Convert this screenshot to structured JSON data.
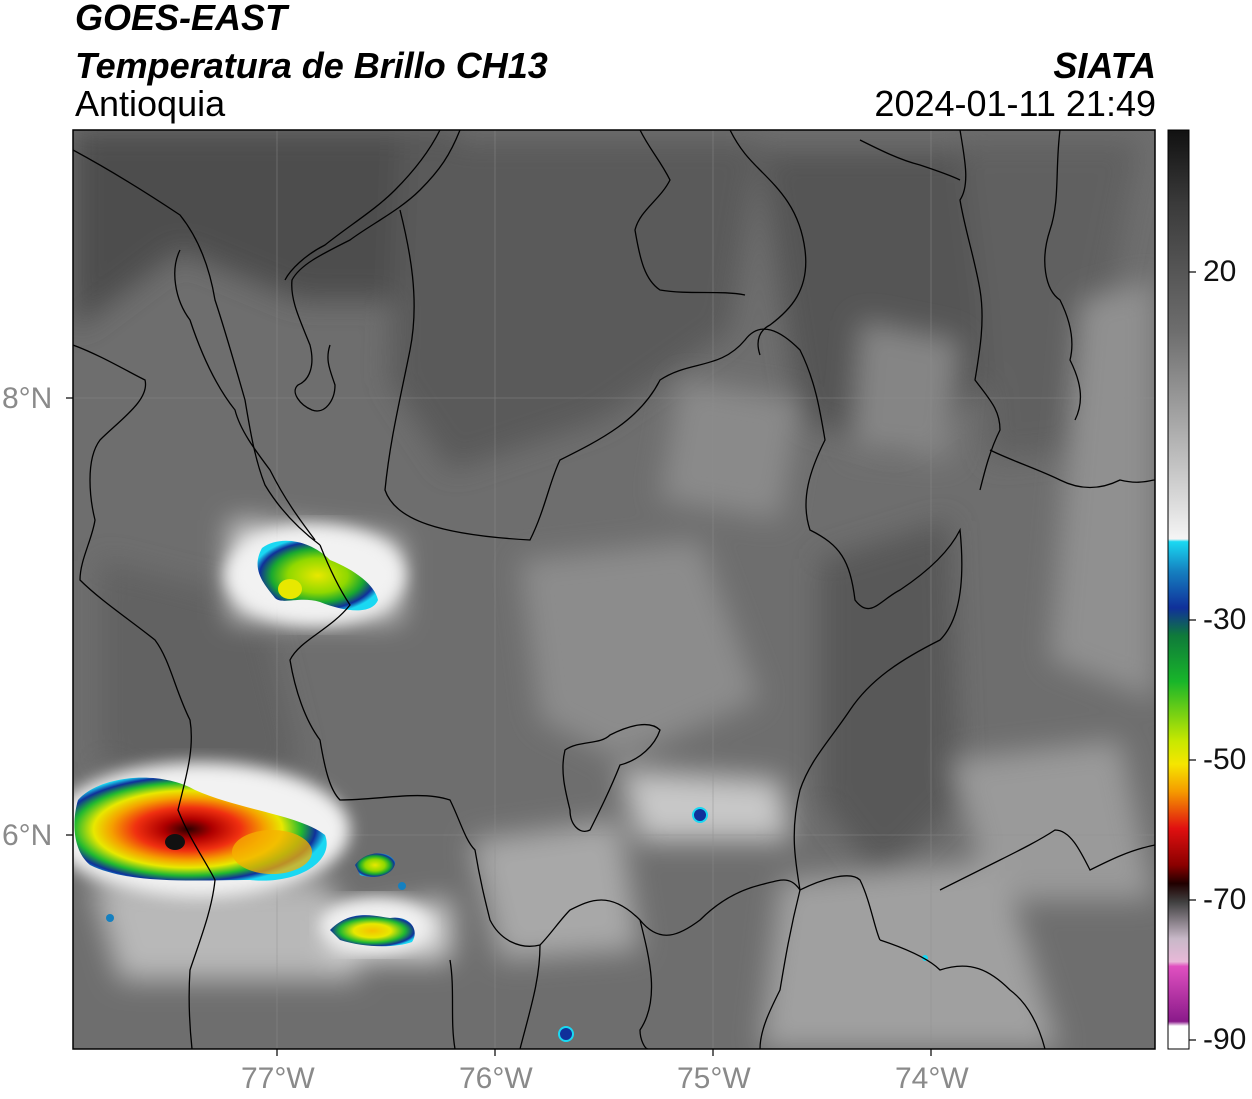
{
  "header": {
    "satellite": "GOES-EAST",
    "product": "Temperatura de Brillo CH13",
    "region": "Antioquia",
    "institution": "SIATA",
    "datetime": "2024-01-11 21:49"
  },
  "axes": {
    "lat_labels": [
      "8°N",
      "6°N"
    ],
    "lon_labels": [
      "77°W",
      "76°W",
      "75°W",
      "74°W"
    ]
  },
  "colorbar": {
    "tick_labels": [
      "20",
      "-30",
      "-50",
      "-70",
      "-90"
    ],
    "colors": {
      "black": "#111111",
      "gray_dark": "#474747",
      "gray_light": "#c8c8c8",
      "white": "#f5f5f5",
      "cyan": "#1ad8f2",
      "blue": "#10309a",
      "green": "#18b52a",
      "yellow": "#f5e600",
      "orange": "#f59a00",
      "red": "#e01010",
      "dark_red": "#5a0000",
      "pink": "#e050c0",
      "purple": "#8a1a8a"
    }
  }
}
